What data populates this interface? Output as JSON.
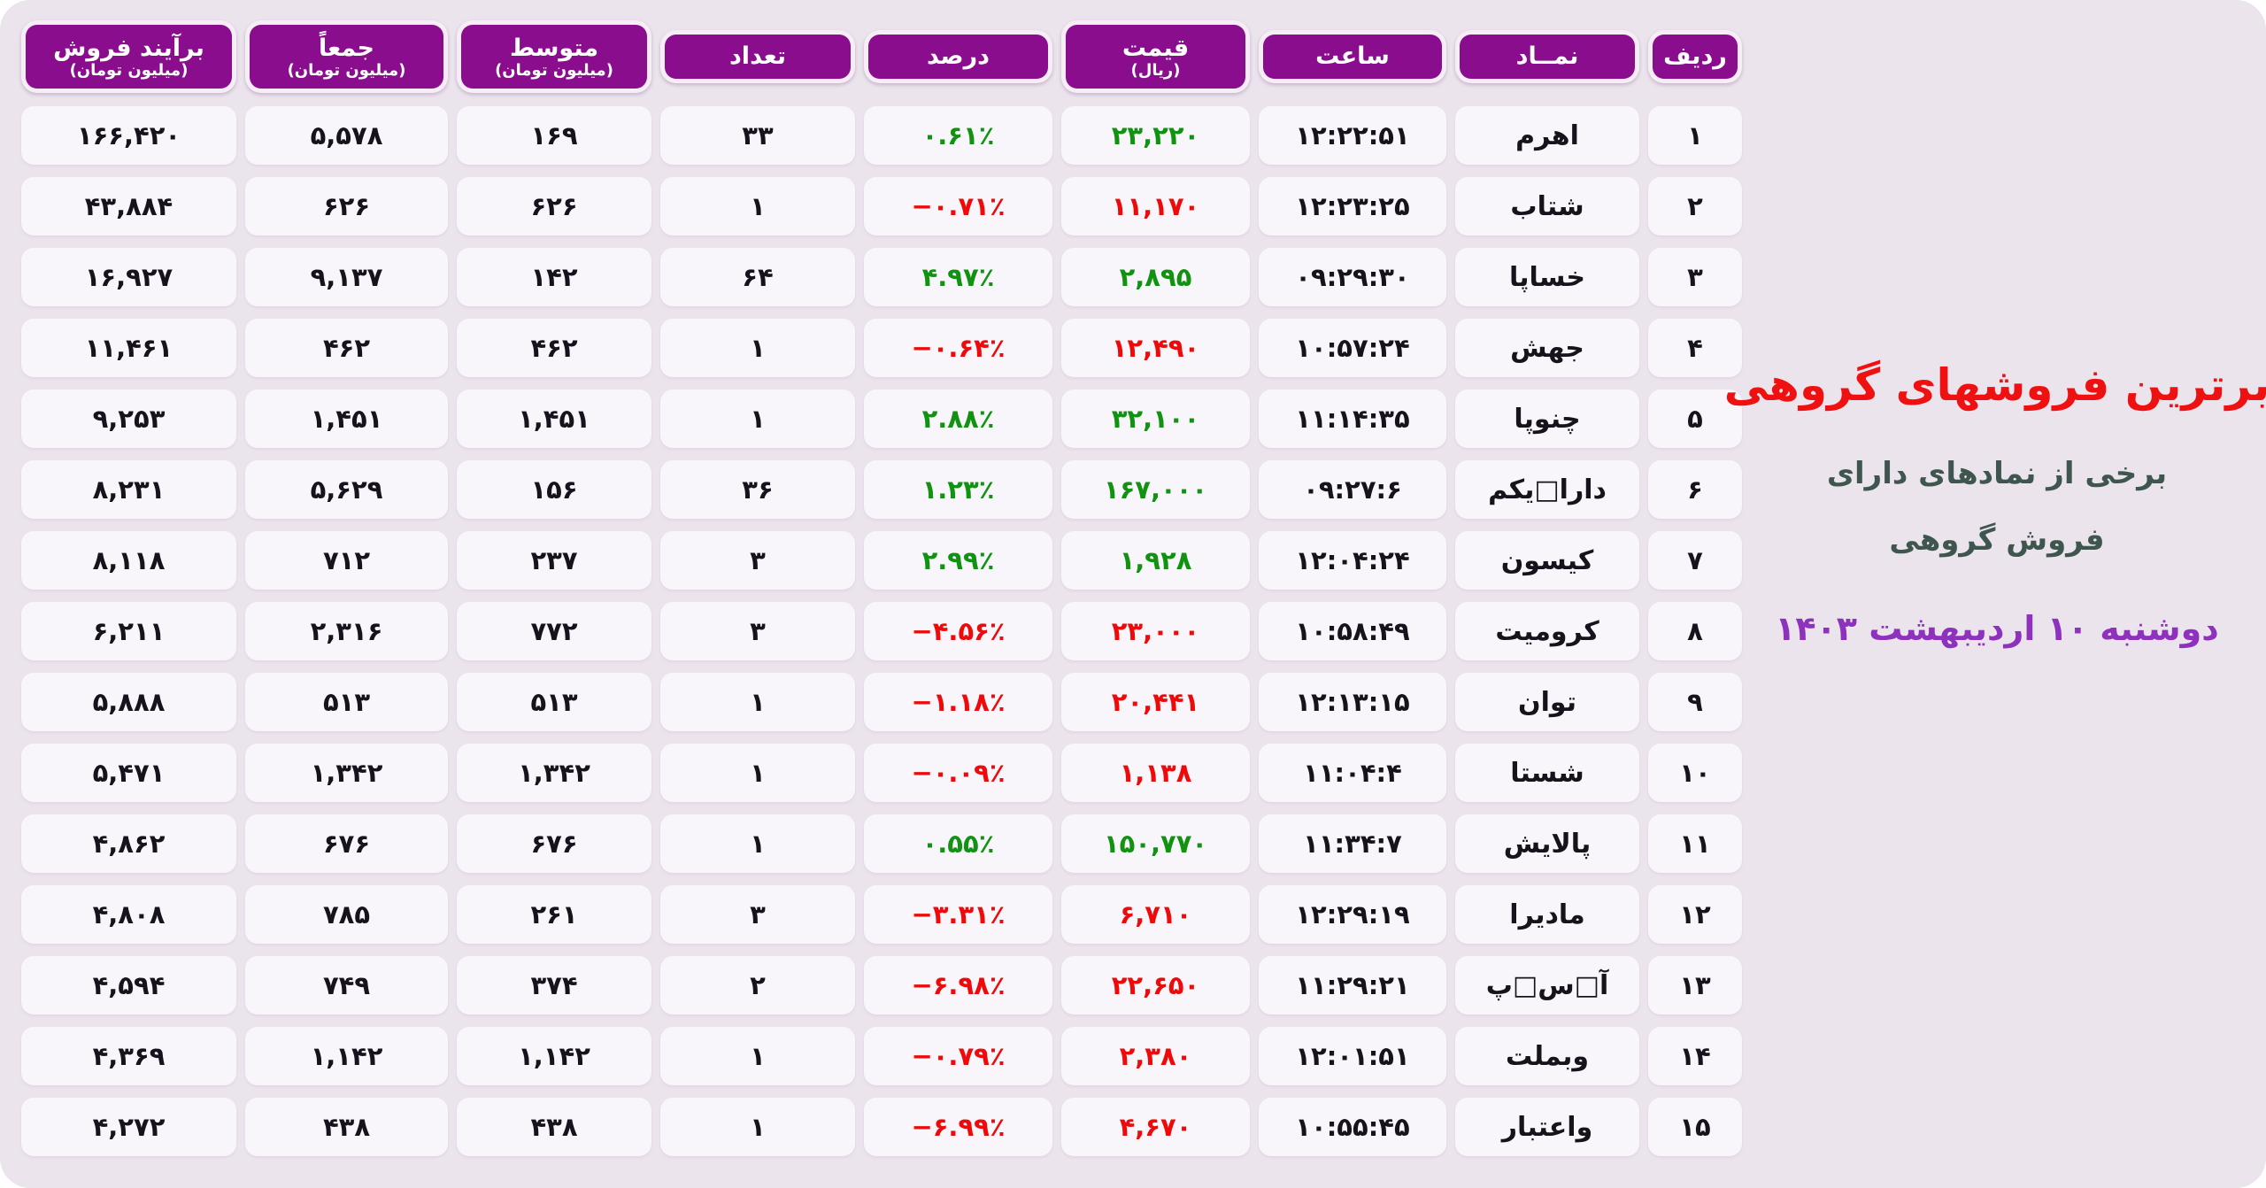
{
  "colors": {
    "page_bg": "#ffffff",
    "panel_bg": "#ebe4ed",
    "cell_bg": "#f8f6fb",
    "header_bg": "#890d8d",
    "header_text": "#ffffff",
    "text": "#17131c",
    "up": "#119211",
    "down": "#ee0a0a",
    "title": "#ef1111",
    "subtitle": "#3f564e",
    "date": "#8e32bd"
  },
  "title_block": {
    "title": "برترین فروشهای گروهی",
    "subtitle_line1": "برخی از نمادهای دارای",
    "subtitle_line2": "فروش گروهی",
    "date": "دوشنبه ۱۰ اردیبهشت ۱۴۰۳"
  },
  "table": {
    "columns": [
      {
        "key": "rank",
        "label": "ردیف",
        "sublabel": ""
      },
      {
        "key": "symbol",
        "label": "نمــاد",
        "sublabel": ""
      },
      {
        "key": "time",
        "label": "ساعت",
        "sublabel": ""
      },
      {
        "key": "price",
        "label": "قیمت",
        "sublabel": "(ریال)"
      },
      {
        "key": "percent",
        "label": "درصد",
        "sublabel": ""
      },
      {
        "key": "count",
        "label": "تعداد",
        "sublabel": ""
      },
      {
        "key": "average",
        "label": "متوسط",
        "sublabel": "(میلیون تومان)"
      },
      {
        "key": "total",
        "label": "جمعاً",
        "sublabel": "(میلیون تومان)"
      },
      {
        "key": "net",
        "label": "برآیند فروش",
        "sublabel": "(میلیون تومان)"
      }
    ],
    "rows": [
      {
        "rank": "۱",
        "symbol": "اهرم",
        "time": "۱۲:۲۲:۵۱",
        "price": "۲۳,۲۲۰",
        "percent": "۰.۶۱٪",
        "count": "۳۳",
        "average": "۱۶۹",
        "total": "۵,۵۷۸",
        "net": "۱۶۶,۴۲۰",
        "trend": "up"
      },
      {
        "rank": "۲",
        "symbol": "شتاب",
        "time": "۱۲:۲۳:۲۵",
        "price": "۱۱,۱۷۰",
        "percent": "−۰.۷۱٪",
        "count": "۱",
        "average": "۶۲۶",
        "total": "۶۲۶",
        "net": "۴۳,۸۸۴",
        "trend": "down"
      },
      {
        "rank": "۳",
        "symbol": "خساپا",
        "time": "۰۹:۲۹:۳۰",
        "price": "۲,۸۹۵",
        "percent": "۴.۹۷٪",
        "count": "۶۴",
        "average": "۱۴۲",
        "total": "۹,۱۳۷",
        "net": "۱۶,۹۲۷",
        "trend": "up"
      },
      {
        "rank": "۴",
        "symbol": "جهش",
        "time": "۱۰:۵۷:۲۴",
        "price": "۱۲,۴۹۰",
        "percent": "−۰.۶۴٪",
        "count": "۱",
        "average": "۴۶۲",
        "total": "۴۶۲",
        "net": "۱۱,۴۶۱",
        "trend": "down"
      },
      {
        "rank": "۵",
        "symbol": "چنوپا",
        "time": "۱۱:۱۴:۳۵",
        "price": "۳۲,۱۰۰",
        "percent": "۲.۸۸٪",
        "count": "۱",
        "average": "۱,۴۵۱",
        "total": "۱,۴۵۱",
        "net": "۹,۲۵۳",
        "trend": "up"
      },
      {
        "rank": "۶",
        "symbol": "دارا□یکم",
        "time": "۰۹:۲۷:۶",
        "price": "۱۶۷,۰۰۰",
        "percent": "۱.۲۳٪",
        "count": "۳۶",
        "average": "۱۵۶",
        "total": "۵,۶۲۹",
        "net": "۸,۲۳۱",
        "trend": "up"
      },
      {
        "rank": "۷",
        "symbol": "کیسون",
        "time": "۱۲:۰۴:۲۴",
        "price": "۱,۹۲۸",
        "percent": "۲.۹۹٪",
        "count": "۳",
        "average": "۲۳۷",
        "total": "۷۱۲",
        "net": "۸,۱۱۸",
        "trend": "up"
      },
      {
        "rank": "۸",
        "symbol": "کرومیت",
        "time": "۱۰:۵۸:۴۹",
        "price": "۲۳,۰۰۰",
        "percent": "−۴.۵۶٪",
        "count": "۳",
        "average": "۷۷۲",
        "total": "۲,۳۱۶",
        "net": "۶,۲۱۱",
        "trend": "down"
      },
      {
        "rank": "۹",
        "symbol": "توان",
        "time": "۱۲:۱۳:۱۵",
        "price": "۲۰,۴۴۱",
        "percent": "−۱.۱۸٪",
        "count": "۱",
        "average": "۵۱۳",
        "total": "۵۱۳",
        "net": "۵,۸۸۸",
        "trend": "down"
      },
      {
        "rank": "۱۰",
        "symbol": "شستا",
        "time": "۱۱:۰۴:۴",
        "price": "۱,۱۳۸",
        "percent": "−۰.۰۹٪",
        "count": "۱",
        "average": "۱,۳۴۲",
        "total": "۱,۳۴۲",
        "net": "۵,۴۷۱",
        "trend": "down"
      },
      {
        "rank": "۱۱",
        "symbol": "پالایش",
        "time": "۱۱:۳۴:۷",
        "price": "۱۵۰,۷۷۰",
        "percent": "۰.۵۵٪",
        "count": "۱",
        "average": "۶۷۶",
        "total": "۶۷۶",
        "net": "۴,۸۶۲",
        "trend": "up"
      },
      {
        "rank": "۱۲",
        "symbol": "مادیرا",
        "time": "۱۲:۲۹:۱۹",
        "price": "۶,۷۱۰",
        "percent": "−۳.۳۱٪",
        "count": "۳",
        "average": "۲۶۱",
        "total": "۷۸۵",
        "net": "۴,۸۰۸",
        "trend": "down"
      },
      {
        "rank": "۱۳",
        "symbol": "آ□س□پ",
        "time": "۱۱:۲۹:۲۱",
        "price": "۲۲,۶۵۰",
        "percent": "−۶.۹۸٪",
        "count": "۲",
        "average": "۳۷۴",
        "total": "۷۴۹",
        "net": "۴,۵۹۴",
        "trend": "down"
      },
      {
        "rank": "۱۴",
        "symbol": "وبملت",
        "time": "۱۲:۰۱:۵۱",
        "price": "۲,۳۸۰",
        "percent": "−۰.۷۹٪",
        "count": "۱",
        "average": "۱,۱۴۲",
        "total": "۱,۱۴۲",
        "net": "۴,۳۶۹",
        "trend": "down"
      },
      {
        "rank": "۱۵",
        "symbol": "واعتبار",
        "time": "۱۰:۵۵:۴۵",
        "price": "۴,۶۷۰",
        "percent": "−۶.۹۹٪",
        "count": "۱",
        "average": "۴۳۸",
        "total": "۴۳۸",
        "net": "۴,۲۷۲",
        "trend": "down"
      }
    ]
  },
  "chart_data": {
    "type": "table",
    "title": "برترین فروشهای گروهی",
    "subtitle": "برخی از نمادهای دارای فروش گروهی",
    "date": "دوشنبه ۱۰ اردیبهشت ۱۴۰۳",
    "columns": [
      "ردیف",
      "نمــاد",
      "ساعت",
      "قیمت (ریال)",
      "درصد",
      "تعداد",
      "متوسط (میلیون تومان)",
      "جمعاً (میلیون تومان)",
      "برآیند فروش (میلیون تومان)"
    ],
    "rows": [
      [
        1,
        "اهرم",
        "12:22:51",
        23220,
        0.61,
        33,
        169,
        5578,
        166420
      ],
      [
        2,
        "شتاب",
        "12:23:25",
        11170,
        -0.71,
        1,
        626,
        626,
        43884
      ],
      [
        3,
        "خساپا",
        "09:29:30",
        2895,
        4.97,
        64,
        142,
        9137,
        16927
      ],
      [
        4,
        "جهش",
        "10:57:24",
        12490,
        -0.64,
        1,
        462,
        462,
        11461
      ],
      [
        5,
        "چنوپا",
        "11:14:35",
        32100,
        2.88,
        1,
        1451,
        1451,
        9253
      ],
      [
        6,
        "دارا یکم",
        "09:27:6",
        167000,
        1.23,
        36,
        156,
        5629,
        8231
      ],
      [
        7,
        "کیسون",
        "12:04:24",
        1928,
        2.99,
        3,
        237,
        712,
        8118
      ],
      [
        8,
        "کرومیت",
        "10:58:49",
        23000,
        -4.56,
        3,
        772,
        2316,
        6211
      ],
      [
        9,
        "توان",
        "12:13:15",
        20441,
        -1.18,
        1,
        513,
        513,
        5888
      ],
      [
        10,
        "شستا",
        "11:04:4",
        1138,
        -0.09,
        1,
        1342,
        1342,
        5471
      ],
      [
        11,
        "پالایش",
        "11:34:7",
        150770,
        0.55,
        1,
        676,
        676,
        4862
      ],
      [
        12,
        "مادیرا",
        "12:29:19",
        6710,
        -3.31,
        3,
        261,
        785,
        4808
      ],
      [
        13,
        "آ س پ",
        "11:29:21",
        22650,
        -6.98,
        2,
        374,
        749,
        4594
      ],
      [
        14,
        "وبملت",
        "12:01:51",
        2380,
        -0.79,
        1,
        1142,
        1142,
        4369
      ],
      [
        15,
        "واعتبار",
        "10:55:45",
        4670,
        -6.99,
        1,
        438,
        438,
        4272
      ]
    ],
    "legend_position": "none",
    "grid": false,
    "notes": "green = positive price/percent, red = negative"
  }
}
